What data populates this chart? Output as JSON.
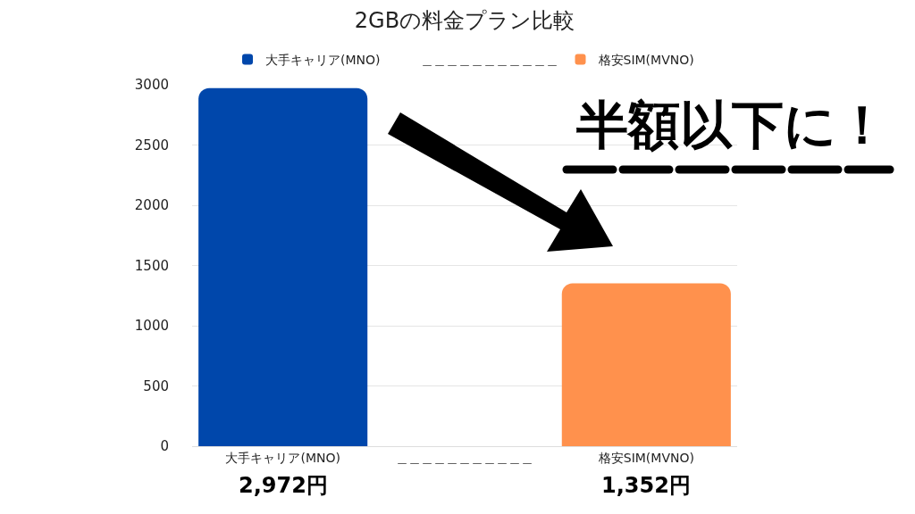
{
  "chart_data": {
    "type": "bar",
    "title": "2GBの料金プラン比較",
    "categories": [
      "大手キャリア(MNO)",
      "＿＿＿＿＿＿＿＿＿＿＿",
      "格安SIM(MVNO)"
    ],
    "series": [
      {
        "name": "大手キャリア(MNO)",
        "color": "#0047ab",
        "values": [
          2972,
          null,
          null
        ],
        "value_labels": [
          "2,972円",
          null,
          null
        ]
      },
      {
        "name": "＿＿＿＿＿＿＿＿＿＿＿",
        "values": [
          null,
          null,
          null
        ],
        "value_labels": [
          null,
          null,
          null
        ]
      },
      {
        "name": "格安SIM(MVNO)",
        "color": "#ff914d",
        "values": [
          null,
          null,
          1352
        ],
        "value_labels": [
          null,
          null,
          "1,352円"
        ]
      }
    ],
    "ylim": [
      0,
      3000
    ],
    "yticks": [
      0,
      500,
      1000,
      1500,
      2000,
      2500,
      3000
    ],
    "grid": "y",
    "legend": "top",
    "annotations": [
      "半額以下に！"
    ]
  }
}
